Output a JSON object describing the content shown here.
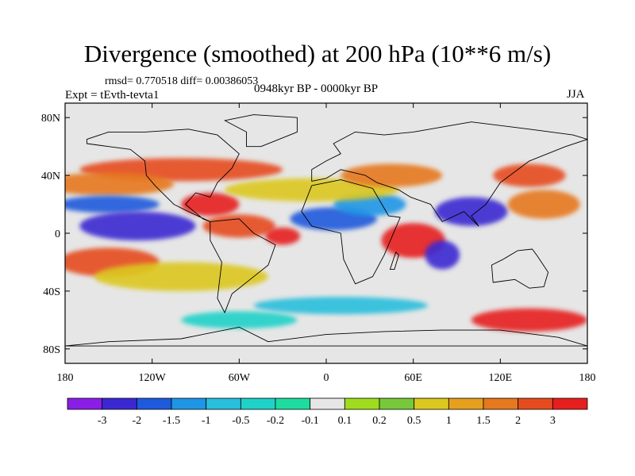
{
  "chart_data": {
    "type": "heatmap",
    "title": "Divergence (smoothed) at 200 hPa (10**6 m/s)",
    "stats_text": "rmsd= 0.770518 diff= 0.00386053",
    "experiment": "Expt = tEvth-tevta1",
    "period": "0948kyr BP - 0000kyr BP",
    "season": "JJA",
    "x_axis": {
      "range": [
        -180,
        180
      ],
      "ticks": [
        {
          "value": -180,
          "label": "180"
        },
        {
          "value": -120,
          "label": "120W"
        },
        {
          "value": -60,
          "label": "60W"
        },
        {
          "value": 0,
          "label": "0"
        },
        {
          "value": 60,
          "label": "60E"
        },
        {
          "value": 120,
          "label": "120E"
        },
        {
          "value": 180,
          "label": "180"
        }
      ]
    },
    "y_axis": {
      "range": [
        -90,
        90
      ],
      "ticks": [
        {
          "value": 80,
          "label": "80N"
        },
        {
          "value": 40,
          "label": "40N"
        },
        {
          "value": 0,
          "label": "0"
        },
        {
          "value": -40,
          "label": "40S"
        },
        {
          "value": -80,
          "label": "80S"
        }
      ]
    },
    "colorbar": {
      "colors": [
        "#8a1ee6",
        "#3c28d2",
        "#1e5adc",
        "#1e96e6",
        "#28bedc",
        "#1ed2c8",
        "#1edca0",
        "#e6e6e6",
        "#a0dc1e",
        "#78c83c",
        "#dcc81e",
        "#e6a01e",
        "#e6781e",
        "#e64b1e",
        "#e61e1e"
      ],
      "labels": [
        "-3",
        "-2",
        "-1.5",
        "-1",
        "-0.5",
        "-0.2",
        "-0.1",
        "0.1",
        "0.2",
        "0.5",
        "1",
        "1.5",
        "2",
        "3"
      ]
    },
    "features": [
      {
        "lon": -100,
        "lat": 44,
        "rx": 70,
        "ry": 8,
        "level": 14
      },
      {
        "lon": -150,
        "lat": 34,
        "rx": 45,
        "ry": 8,
        "level": 13
      },
      {
        "lon": -80,
        "lat": 20,
        "rx": 20,
        "ry": 8,
        "level": 15
      },
      {
        "lon": -150,
        "lat": 20,
        "rx": 35,
        "ry": 6,
        "level": 3
      },
      {
        "lon": -130,
        "lat": 5,
        "rx": 40,
        "ry": 10,
        "level": 2
      },
      {
        "lon": -60,
        "lat": 5,
        "rx": 25,
        "ry": 8,
        "level": 14
      },
      {
        "lon": -30,
        "lat": -2,
        "rx": 12,
        "ry": 6,
        "level": 15
      },
      {
        "lon": 5,
        "lat": 10,
        "rx": 30,
        "ry": 8,
        "level": 3
      },
      {
        "lon": 30,
        "lat": 20,
        "rx": 25,
        "ry": 8,
        "level": 4
      },
      {
        "lon": -10,
        "lat": 30,
        "rx": 60,
        "ry": 8,
        "level": 11
      },
      {
        "lon": 45,
        "lat": 40,
        "rx": 35,
        "ry": 8,
        "level": 13
      },
      {
        "lon": 60,
        "lat": -5,
        "rx": 22,
        "ry": 12,
        "level": 15
      },
      {
        "lon": 80,
        "lat": -15,
        "rx": 12,
        "ry": 10,
        "level": 2
      },
      {
        "lon": 100,
        "lat": 15,
        "rx": 25,
        "ry": 10,
        "level": 2
      },
      {
        "lon": 150,
        "lat": 20,
        "rx": 25,
        "ry": 10,
        "level": 13
      },
      {
        "lon": 140,
        "lat": 40,
        "rx": 25,
        "ry": 8,
        "level": 14
      },
      {
        "lon": -150,
        "lat": -20,
        "rx": 35,
        "ry": 10,
        "level": 14
      },
      {
        "lon": -100,
        "lat": -30,
        "rx": 60,
        "ry": 10,
        "level": 11
      },
      {
        "lon": 10,
        "lat": -50,
        "rx": 60,
        "ry": 6,
        "level": 5
      },
      {
        "lon": 140,
        "lat": -60,
        "rx": 40,
        "ry": 8,
        "level": 15
      },
      {
        "lon": -60,
        "lat": -60,
        "rx": 40,
        "ry": 6,
        "level": 6
      }
    ],
    "continents": [
      {
        "name": "North America",
        "points": [
          [
            -165,
            65
          ],
          [
            -150,
            70
          ],
          [
            -125,
            70
          ],
          [
            -95,
            72
          ],
          [
            -75,
            68
          ],
          [
            -60,
            55
          ],
          [
            -65,
            45
          ],
          [
            -75,
            35
          ],
          [
            -80,
            25
          ],
          [
            -90,
            28
          ],
          [
            -97,
            20
          ],
          [
            -85,
            10
          ],
          [
            -80,
            8
          ],
          [
            -95,
            15
          ],
          [
            -105,
            20
          ],
          [
            -118,
            33
          ],
          [
            -124,
            40
          ],
          [
            -125,
            50
          ],
          [
            -135,
            58
          ],
          [
            -150,
            60
          ],
          [
            -165,
            62
          ]
        ]
      },
      {
        "name": "Greenland",
        "points": [
          [
            -55,
            60
          ],
          [
            -45,
            60
          ],
          [
            -20,
            70
          ],
          [
            -20,
            80
          ],
          [
            -50,
            82
          ],
          [
            -70,
            78
          ],
          [
            -55,
            70
          ]
        ]
      },
      {
        "name": "South America",
        "points": [
          [
            -80,
            8
          ],
          [
            -60,
            10
          ],
          [
            -50,
            0
          ],
          [
            -35,
            -8
          ],
          [
            -40,
            -22
          ],
          [
            -50,
            -30
          ],
          [
            -65,
            -42
          ],
          [
            -70,
            -55
          ],
          [
            -75,
            -45
          ],
          [
            -72,
            -20
          ],
          [
            -80,
            -5
          ]
        ]
      },
      {
        "name": "Africa",
        "points": [
          [
            -17,
            15
          ],
          [
            -10,
            33
          ],
          [
            10,
            37
          ],
          [
            32,
            31
          ],
          [
            43,
            12
          ],
          [
            51,
            11
          ],
          [
            40,
            -15
          ],
          [
            32,
            -30
          ],
          [
            20,
            -35
          ],
          [
            12,
            -18
          ],
          [
            10,
            0
          ],
          [
            -10,
            5
          ]
        ]
      },
      {
        "name": "Eurasia",
        "points": [
          [
            -10,
            36
          ],
          [
            -10,
            44
          ],
          [
            0,
            50
          ],
          [
            10,
            55
          ],
          [
            5,
            62
          ],
          [
            20,
            70
          ],
          [
            40,
            68
          ],
          [
            60,
            70
          ],
          [
            100,
            77
          ],
          [
            140,
            72
          ],
          [
            170,
            68
          ],
          [
            180,
            65
          ],
          [
            165,
            60
          ],
          [
            140,
            50
          ],
          [
            120,
            35
          ],
          [
            110,
            20
          ],
          [
            100,
            12
          ],
          [
            105,
            5
          ],
          [
            95,
            15
          ],
          [
            80,
            8
          ],
          [
            72,
            20
          ],
          [
            58,
            25
          ],
          [
            50,
            30
          ],
          [
            35,
            35
          ],
          [
            27,
            40
          ],
          [
            10,
            44
          ],
          [
            0,
            38
          ]
        ]
      },
      {
        "name": "Madagascar",
        "points": [
          [
            44,
            -25
          ],
          [
            48,
            -13
          ],
          [
            50,
            -15
          ],
          [
            47,
            -25
          ]
        ]
      },
      {
        "name": "Australia",
        "points": [
          [
            114,
            -22
          ],
          [
            122,
            -18
          ],
          [
            132,
            -12
          ],
          [
            142,
            -11
          ],
          [
            145,
            -15
          ],
          [
            153,
            -27
          ],
          [
            150,
            -37
          ],
          [
            140,
            -38
          ],
          [
            130,
            -32
          ],
          [
            115,
            -34
          ]
        ]
      },
      {
        "name": "Antarctica",
        "points": [
          [
            -180,
            -78
          ],
          [
            -150,
            -75
          ],
          [
            -100,
            -73
          ],
          [
            -60,
            -65
          ],
          [
            -40,
            -75
          ],
          [
            0,
            -70
          ],
          [
            40,
            -68
          ],
          [
            80,
            -67
          ],
          [
            120,
            -67
          ],
          [
            160,
            -72
          ],
          [
            180,
            -78
          ]
        ]
      }
    ]
  }
}
